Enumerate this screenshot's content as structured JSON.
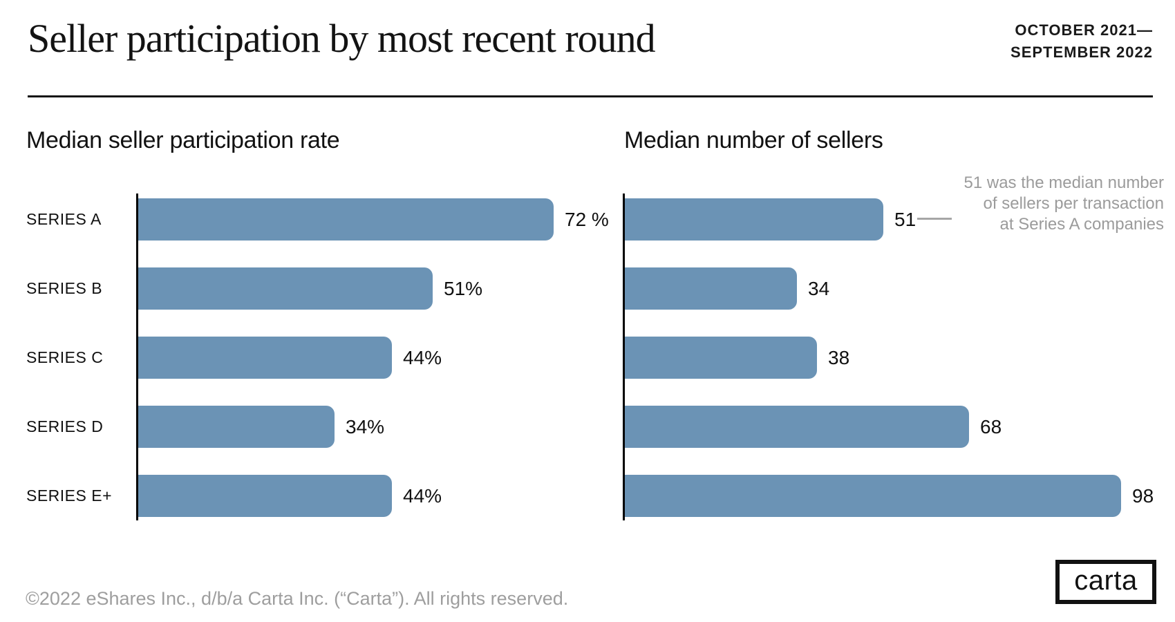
{
  "header": {
    "title": "Seller participation by most recent round",
    "date_line1": "OCTOBER 2021—",
    "date_line2": "SEPTEMBER 2022"
  },
  "charts": {
    "categories": [
      "SERIES A",
      "SERIES B",
      "SERIES C",
      "SERIES D",
      "SERIES E+"
    ],
    "left": {
      "title": "Median seller participation rate",
      "values": [
        72,
        51,
        44,
        34,
        44
      ],
      "labels": [
        "72 %",
        "51%",
        "44%",
        "34%",
        "44%"
      ]
    },
    "right": {
      "title": "Median number of sellers",
      "values": [
        51,
        34,
        38,
        68,
        98
      ],
      "labels": [
        "51",
        "34",
        "38",
        "68",
        "98"
      ]
    }
  },
  "annotation": {
    "line1": "51 was the median number",
    "line2": "of sellers per transaction",
    "line3": "at Series A companies"
  },
  "footer": {
    "copyright": "©2022 eShares Inc., d/b/a Carta Inc. (“Carta”). All rights reserved.",
    "logo_text": "carta"
  },
  "colors": {
    "bar": "#6b93b5",
    "axis": "#000000",
    "text": "#111111",
    "muted_text": "#9b9b9b"
  },
  "chart_data": [
    {
      "type": "bar",
      "orientation": "horizontal",
      "title": "Median seller participation rate",
      "categories": [
        "Series A",
        "Series B",
        "Series C",
        "Series D",
        "Series E+"
      ],
      "values": [
        72,
        51,
        44,
        34,
        44
      ],
      "unit": "%",
      "xlim": [
        0,
        80
      ],
      "grid": false,
      "bar_color": "#6b93b5",
      "value_labels": [
        "72 %",
        "51%",
        "44%",
        "34%",
        "44%"
      ]
    },
    {
      "type": "bar",
      "orientation": "horizontal",
      "title": "Median number of sellers",
      "categories": [
        "Series A",
        "Series B",
        "Series C",
        "Series D",
        "Series E+"
      ],
      "values": [
        51,
        34,
        38,
        68,
        98
      ],
      "unit": "sellers",
      "xlim": [
        0,
        105
      ],
      "grid": false,
      "bar_color": "#6b93b5",
      "value_labels": [
        "51",
        "34",
        "38",
        "68",
        "98"
      ],
      "annotation": "51 was the median number of sellers per transaction at Series A companies"
    }
  ]
}
